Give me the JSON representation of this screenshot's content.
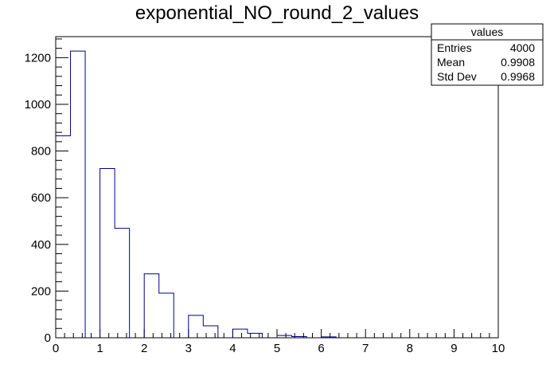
{
  "chart_data": {
    "type": "bar",
    "title": "exponential_NO_round_2_values",
    "xlabel": "",
    "ylabel": "",
    "xlim": [
      0,
      10
    ],
    "ylim": [
      0,
      1290
    ],
    "bin_width": 0.33333,
    "x_ticks": [
      "0",
      "1",
      "2",
      "3",
      "4",
      "5",
      "6",
      "7",
      "8",
      "9",
      "10"
    ],
    "y_ticks": [
      "0",
      "200",
      "400",
      "600",
      "800",
      "1000",
      "1200"
    ],
    "x_tick_values": [
      0,
      1,
      2,
      3,
      4,
      5,
      6,
      7,
      8,
      9,
      10
    ],
    "y_tick_values": [
      0,
      200,
      400,
      600,
      800,
      1000,
      1200
    ],
    "bins": [
      {
        "x_low": 0.0,
        "value": 865
      },
      {
        "x_low": 0.33333,
        "value": 1228
      },
      {
        "x_low": 0.66667,
        "value": 0
      },
      {
        "x_low": 1.0,
        "value": 725
      },
      {
        "x_low": 1.33333,
        "value": 469
      },
      {
        "x_low": 1.66667,
        "value": 0
      },
      {
        "x_low": 2.0,
        "value": 274
      },
      {
        "x_low": 2.33333,
        "value": 191
      },
      {
        "x_low": 2.66667,
        "value": 0
      },
      {
        "x_low": 3.0,
        "value": 96
      },
      {
        "x_low": 3.33333,
        "value": 51
      },
      {
        "x_low": 3.66667,
        "value": 0
      },
      {
        "x_low": 4.0,
        "value": 37
      },
      {
        "x_low": 4.33333,
        "value": 19
      },
      {
        "x_low": 4.66667,
        "value": 0
      },
      {
        "x_low": 5.0,
        "value": 10
      },
      {
        "x_low": 5.33333,
        "value": 5
      },
      {
        "x_low": 5.66667,
        "value": 0
      },
      {
        "x_low": 6.0,
        "value": 4
      },
      {
        "x_low": 6.33333,
        "value": 0
      }
    ],
    "stats_box": {
      "name": "values",
      "rows": [
        {
          "label": "Entries",
          "value": "4000"
        },
        {
          "label": "Mean",
          "value": "0.9908"
        },
        {
          "label": "Std Dev",
          "value": "0.9968"
        }
      ]
    },
    "colors": {
      "line": "#00008b",
      "axis": "#000000"
    }
  }
}
